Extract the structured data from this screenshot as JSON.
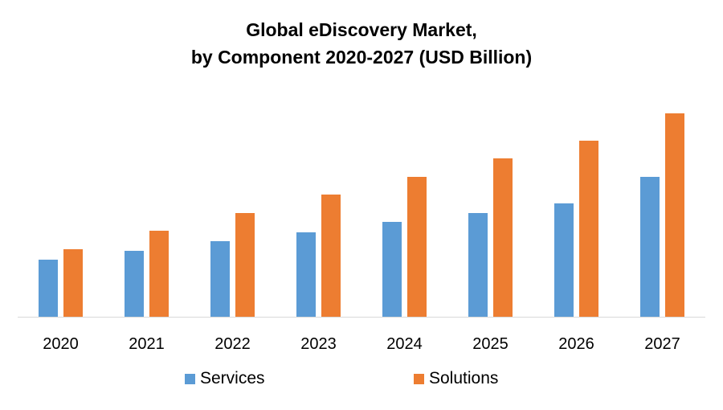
{
  "chart_data": {
    "type": "bar",
    "title_line1": "Global eDiscovery Market,",
    "title_line2": "by Component 2020-2027 (USD Billion)",
    "categories": [
      "2020",
      "2021",
      "2022",
      "2023",
      "2024",
      "2025",
      "2026",
      "2027"
    ],
    "series": [
      {
        "name": "Services",
        "color": "#5B9BD5",
        "values": [
          7.1,
          8.2,
          9.4,
          10.5,
          11.8,
          12.9,
          14.1,
          17.4
        ]
      },
      {
        "name": "Solutions",
        "color": "#ED7D31",
        "values": [
          8.4,
          10.7,
          12.9,
          15.2,
          17.4,
          19.7,
          21.9,
          25.3
        ]
      }
    ],
    "ylim": [
      0,
      27
    ],
    "grid": false,
    "y_axis_shown": false,
    "legend_position": "bottom"
  }
}
